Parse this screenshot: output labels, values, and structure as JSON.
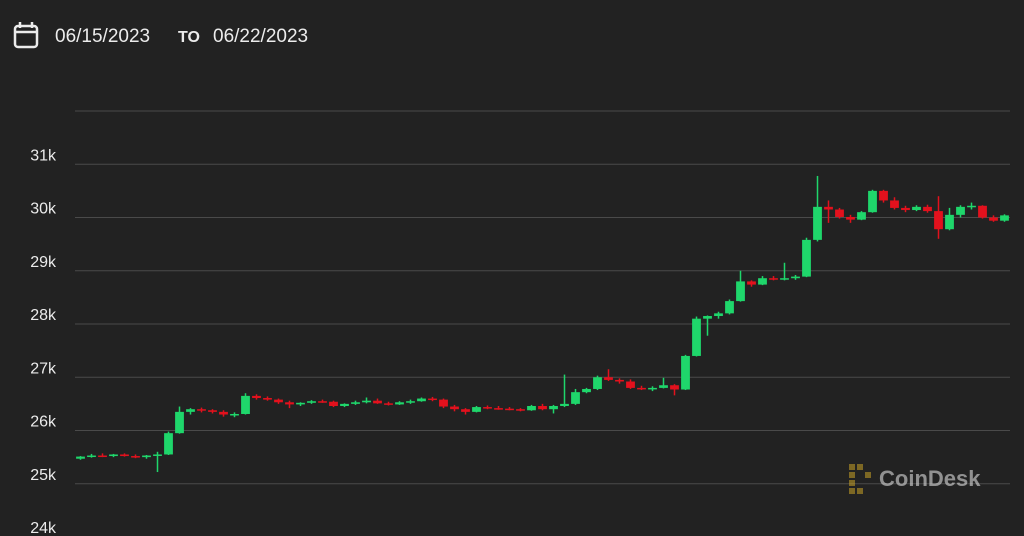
{
  "header": {
    "from": "06/15/2023",
    "to_word": "TO",
    "to": "06/22/2023"
  },
  "logo": "CoinDesk",
  "chart_data": {
    "type": "candlestick",
    "ylim": [
      24000,
      32000
    ],
    "yticks": [
      {
        "value": 24000,
        "label": "24k"
      },
      {
        "value": 25000,
        "label": "25k"
      },
      {
        "value": 26000,
        "label": "26k"
      },
      {
        "value": 27000,
        "label": "27k"
      },
      {
        "value": 28000,
        "label": "28k"
      },
      {
        "value": 29000,
        "label": "29k"
      },
      {
        "value": 30000,
        "label": "30k"
      },
      {
        "value": 31000,
        "label": "31k"
      }
    ],
    "grid": true,
    "up_color": "#1fd66b",
    "down_color": "#e3111d",
    "open": [
      25470,
      25510,
      25530,
      25520,
      25550,
      25520,
      25500,
      25530,
      25550,
      25950,
      26350,
      26400,
      26380,
      26350,
      26300,
      26310,
      26650,
      26610,
      26580,
      26530,
      26490,
      26520,
      26550,
      26540,
      26460,
      26500,
      26530,
      26560,
      26510,
      26490,
      26530,
      26550,
      26600,
      26580,
      26450,
      26400,
      26350,
      26440,
      26420,
      26410,
      26400,
      26380,
      26460,
      26400,
      26460,
      26500,
      26720,
      26780,
      27000,
      26950,
      26920,
      26800,
      26780,
      26800,
      26850,
      26770,
      27400,
      28100,
      28150,
      28200,
      28430,
      28800,
      28740,
      28860,
      28840,
      28860,
      28890,
      29580,
      30200,
      30150,
      30010,
      29960,
      30100,
      30500,
      30320,
      30180,
      30140,
      30200,
      30120,
      29780,
      30050,
      30200,
      30220,
      30000,
      29940
    ],
    "high": [
      25520,
      25560,
      25570,
      25560,
      25570,
      25550,
      25540,
      25600,
      25980,
      26450,
      26420,
      26430,
      26400,
      26380,
      26340,
      26700,
      26680,
      26640,
      26600,
      26560,
      26530,
      26570,
      26580,
      26560,
      26510,
      26560,
      26620,
      26600,
      26540,
      26550,
      26580,
      26620,
      26630,
      26600,
      26480,
      26420,
      26460,
      26470,
      26460,
      26440,
      26420,
      26480,
      26500,
      26480,
      27050,
      26780,
      26800,
      27030,
      27150,
      26980,
      26960,
      26840,
      26830,
      26990,
      26870,
      27420,
      28140,
      28160,
      28230,
      28460,
      29000,
      28820,
      28900,
      28900,
      29150,
      28920,
      29620,
      30780,
      30320,
      30180,
      30050,
      30120,
      30520,
      30520,
      30380,
      30220,
      30230,
      30240,
      30400,
      30180,
      30230,
      30280,
      30230,
      30040,
      30060
    ],
    "low": [
      25450,
      25490,
      25500,
      25500,
      25510,
      25480,
      25470,
      25220,
      25540,
      25940,
      26300,
      26340,
      26320,
      26260,
      26250,
      26300,
      26580,
      26560,
      26500,
      26420,
      26460,
      26500,
      26520,
      26440,
      26440,
      26480,
      26510,
      26500,
      26470,
      26480,
      26500,
      26540,
      26550,
      26420,
      26360,
      26300,
      26340,
      26400,
      26390,
      26380,
      26360,
      26370,
      26380,
      26320,
      26440,
      26480,
      26700,
      26760,
      26930,
      26880,
      26780,
      26760,
      26740,
      26790,
      26660,
      26760,
      27390,
      27780,
      28100,
      28180,
      28420,
      28700,
      28730,
      28820,
      28820,
      28830,
      28880,
      29550,
      29900,
      29980,
      29900,
      29950,
      30090,
      30280,
      30150,
      30100,
      30120,
      30090,
      29600,
      29760,
      30000,
      30150,
      29980,
      29920,
      29920
    ],
    "close": [
      25510,
      25530,
      25520,
      25550,
      25520,
      25500,
      25530,
      25550,
      25950,
      26350,
      26400,
      26380,
      26350,
      26300,
      26310,
      26650,
      26610,
      26580,
      26530,
      26490,
      26520,
      26550,
      26540,
      26460,
      26500,
      26530,
      26560,
      26510,
      26490,
      26530,
      26550,
      26600,
      26580,
      26450,
      26400,
      26350,
      26440,
      26420,
      26410,
      26400,
      26380,
      26460,
      26400,
      26460,
      26500,
      26720,
      26780,
      27000,
      26950,
      26920,
      26800,
      26780,
      26800,
      26850,
      26770,
      27400,
      28100,
      28150,
      28200,
      28430,
      28800,
      28740,
      28860,
      28840,
      28860,
      28890,
      29580,
      30200,
      30150,
      30010,
      29960,
      30100,
      30500,
      30320,
      30180,
      30140,
      30200,
      30120,
      29780,
      30050,
      30200,
      30220,
      30000,
      29940,
      30040
    ]
  }
}
